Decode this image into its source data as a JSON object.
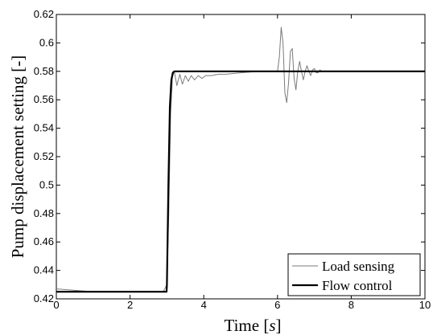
{
  "chart_data": {
    "type": "line",
    "xlabel": "Time [s]",
    "xlabel_text": "Time [",
    "xlabel_unit": "s",
    "xlabel_close": "]",
    "ylabel": "Pump displacement setting [-]",
    "xlim": [
      0,
      10
    ],
    "ylim": [
      0.42,
      0.62
    ],
    "xticks": [
      0,
      2,
      4,
      6,
      8,
      10
    ],
    "yticks": [
      0.42,
      0.44,
      0.46,
      0.48,
      0.5,
      0.52,
      0.54,
      0.56,
      0.58,
      0.6,
      0.62
    ],
    "grid": false,
    "legend_position": "bottom-right",
    "series": [
      {
        "name": "Load sensing",
        "color": "#7a7a7a",
        "x": [
          0,
          0.5,
          1,
          1.5,
          2,
          2.5,
          2.9,
          3.0,
          3.05,
          3.1,
          3.15,
          3.2,
          3.27,
          3.35,
          3.42,
          3.5,
          3.58,
          3.66,
          3.75,
          3.85,
          3.95,
          4.05,
          4.2,
          4.4,
          4.6,
          5.0,
          5.5,
          6.0,
          6.05,
          6.1,
          6.15,
          6.2,
          6.25,
          6.3,
          6.35,
          6.4,
          6.45,
          6.5,
          6.55,
          6.6,
          6.65,
          6.7,
          6.75,
          6.8,
          6.85,
          6.9,
          6.95,
          7.0,
          7.05,
          7.1,
          7.15,
          7.2,
          7.3,
          7.4,
          7.5,
          7.7,
          8.0,
          9.0,
          10.0
        ],
        "y": [
          0.427,
          0.426,
          0.425,
          0.425,
          0.425,
          0.425,
          0.425,
          0.43,
          0.48,
          0.55,
          0.576,
          0.58,
          0.57,
          0.578,
          0.571,
          0.577,
          0.573,
          0.577,
          0.574,
          0.577,
          0.575,
          0.577,
          0.577,
          0.578,
          0.578,
          0.579,
          0.58,
          0.58,
          0.59,
          0.611,
          0.6,
          0.565,
          0.558,
          0.572,
          0.594,
          0.596,
          0.575,
          0.567,
          0.58,
          0.587,
          0.58,
          0.574,
          0.58,
          0.584,
          0.58,
          0.577,
          0.581,
          0.582,
          0.579,
          0.579,
          0.581,
          0.58,
          0.58,
          0.58,
          0.58,
          0.58,
          0.58,
          0.58,
          0.58
        ]
      },
      {
        "name": "Flow control",
        "color": "#000000",
        "x": [
          0,
          1,
          2,
          2.99,
          3.0,
          3.04,
          3.08,
          3.12,
          3.16,
          3.2,
          3.25,
          3.3,
          4,
          5,
          6,
          7,
          8,
          9,
          10
        ],
        "y": [
          0.425,
          0.425,
          0.425,
          0.425,
          0.43,
          0.5,
          0.555,
          0.574,
          0.579,
          0.58,
          0.58,
          0.58,
          0.58,
          0.58,
          0.58,
          0.58,
          0.58,
          0.58,
          0.58
        ]
      }
    ]
  }
}
